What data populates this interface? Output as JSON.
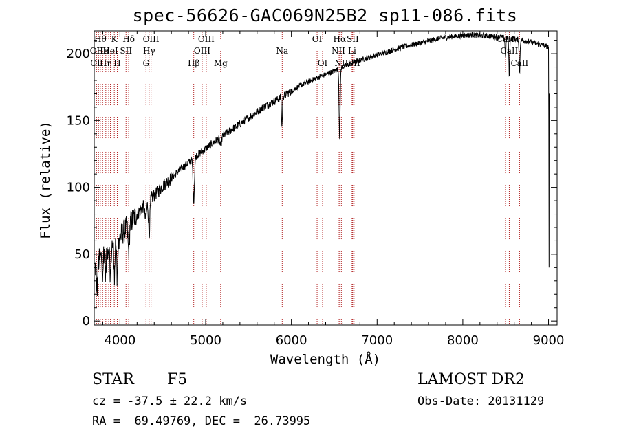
{
  "page": {
    "title": "spec-56626-GAC069N25B2_sp11-086.fits",
    "object_class": "STAR",
    "subclass": "F5",
    "survey": "LAMOST DR2",
    "cz": "cz = -37.5 ± 22.2 km/s",
    "obs_date": "Obs-Date: 20131129",
    "coords": "RA =  69.49769, DEC =  26.73995"
  },
  "chart_data": {
    "type": "line",
    "title": "spec-56626-GAC069N25B2_sp11-086.fits",
    "xlabel": "Wavelength (Å)",
    "ylabel": "Flux (relative)",
    "xlim": [
      3700,
      9100
    ],
    "ylim": [
      -3,
      217
    ],
    "x_ticks": [
      4000,
      5000,
      6000,
      7000,
      8000,
      9000
    ],
    "y_ticks": [
      0,
      50,
      100,
      150,
      200
    ],
    "grid": false,
    "continuum": {
      "x": [
        3700,
        3750,
        3800,
        3900,
        4000,
        4100,
        4200,
        4300,
        4400,
        4500,
        4700,
        4900,
        5100,
        5300,
        5500,
        5700,
        5900,
        6100,
        6300,
        6500,
        6700,
        6900,
        7100,
        7300,
        7500,
        7700,
        7900,
        8100,
        8300,
        8500,
        8700,
        8900,
        9000
      ],
      "y": [
        40,
        45,
        50,
        57,
        63,
        72,
        80,
        88,
        94,
        101,
        113,
        124,
        134,
        143,
        152,
        161,
        168,
        176,
        182,
        187,
        193,
        197,
        201,
        205,
        208,
        211,
        213,
        214,
        213,
        212,
        210,
        207,
        205
      ]
    },
    "absorption_features": [
      {
        "x": 3733,
        "depth": 18,
        "width": 8
      },
      {
        "x": 3797,
        "depth": 12,
        "width": 6
      },
      {
        "x": 3835,
        "depth": 18,
        "width": 6
      },
      {
        "x": 3889,
        "depth": 22,
        "width": 7
      },
      {
        "x": 3934,
        "depth": 25,
        "width": 6
      },
      {
        "x": 3969,
        "depth": 33,
        "width": 7
      },
      {
        "x": 4102,
        "depth": 20,
        "width": 8
      },
      {
        "x": 4300,
        "depth": 12,
        "width": 10
      },
      {
        "x": 4341,
        "depth": 25,
        "width": 8
      },
      {
        "x": 4861,
        "depth": 32,
        "width": 8
      },
      {
        "x": 5175,
        "depth": 6,
        "width": 10
      },
      {
        "x": 5890,
        "depth": 22,
        "width": 5
      },
      {
        "x": 6563,
        "depth": 52,
        "width": 6
      },
      {
        "x": 8498,
        "depth": 14,
        "width": 5
      },
      {
        "x": 8542,
        "depth": 28,
        "width": 5
      },
      {
        "x": 8662,
        "depth": 25,
        "width": 5
      }
    ],
    "spectral_lines": [
      {
        "x": 3727,
        "name": "OII",
        "row": 1
      },
      {
        "x": 3750,
        "name": "OIII",
        "row": 3
      },
      {
        "x": 3771,
        "name": "Hθ",
        "row": 0
      },
      {
        "x": 3798,
        "name": "He",
        "row": 1
      },
      {
        "x": 3835,
        "name": "Hη",
        "row": 3
      },
      {
        "x": 3869,
        "name": "",
        "row": 0
      },
      {
        "x": 3889,
        "name": "HeI",
        "row": 1
      },
      {
        "x": 3934,
        "name": "K",
        "row": 0
      },
      {
        "x": 3969,
        "name": "H",
        "row": 3
      },
      {
        "x": 4071,
        "name": "SII",
        "row": 1
      },
      {
        "x": 4102,
        "name": "Hδ",
        "row": 0
      },
      {
        "x": 4304,
        "name": "G",
        "row": 3
      },
      {
        "x": 4340,
        "name": "Hγ",
        "row": 2
      },
      {
        "x": 4363,
        "name": "OIII",
        "row": 0
      },
      {
        "x": 4861,
        "name": "Hβ",
        "row": 3
      },
      {
        "x": 4959,
        "name": "OIII",
        "row": 2
      },
      {
        "x": 5007,
        "name": "OIII",
        "row": 0
      },
      {
        "x": 5175,
        "name": "Mg",
        "row": 3
      },
      {
        "x": 5893,
        "name": "Na",
        "row": 2
      },
      {
        "x": 6300,
        "name": "OI",
        "row": 0
      },
      {
        "x": 6364,
        "name": "OI",
        "row": 3
      },
      {
        "x": 6548,
        "name": "NII",
        "row": 2
      },
      {
        "x": 6563,
        "name": "Hα",
        "row": 0
      },
      {
        "x": 6583,
        "name": "NII",
        "row": 3
      },
      {
        "x": 6708,
        "name": "Li",
        "row": 2
      },
      {
        "x": 6716,
        "name": "SII",
        "row": 0
      },
      {
        "x": 6731,
        "name": "SII",
        "row": 3
      },
      {
        "x": 8498,
        "name": "CaII",
        "row": 0
      },
      {
        "x": 8542,
        "name": "CaII",
        "row": 2
      },
      {
        "x": 8662,
        "name": "CaII",
        "row": 3
      }
    ]
  }
}
